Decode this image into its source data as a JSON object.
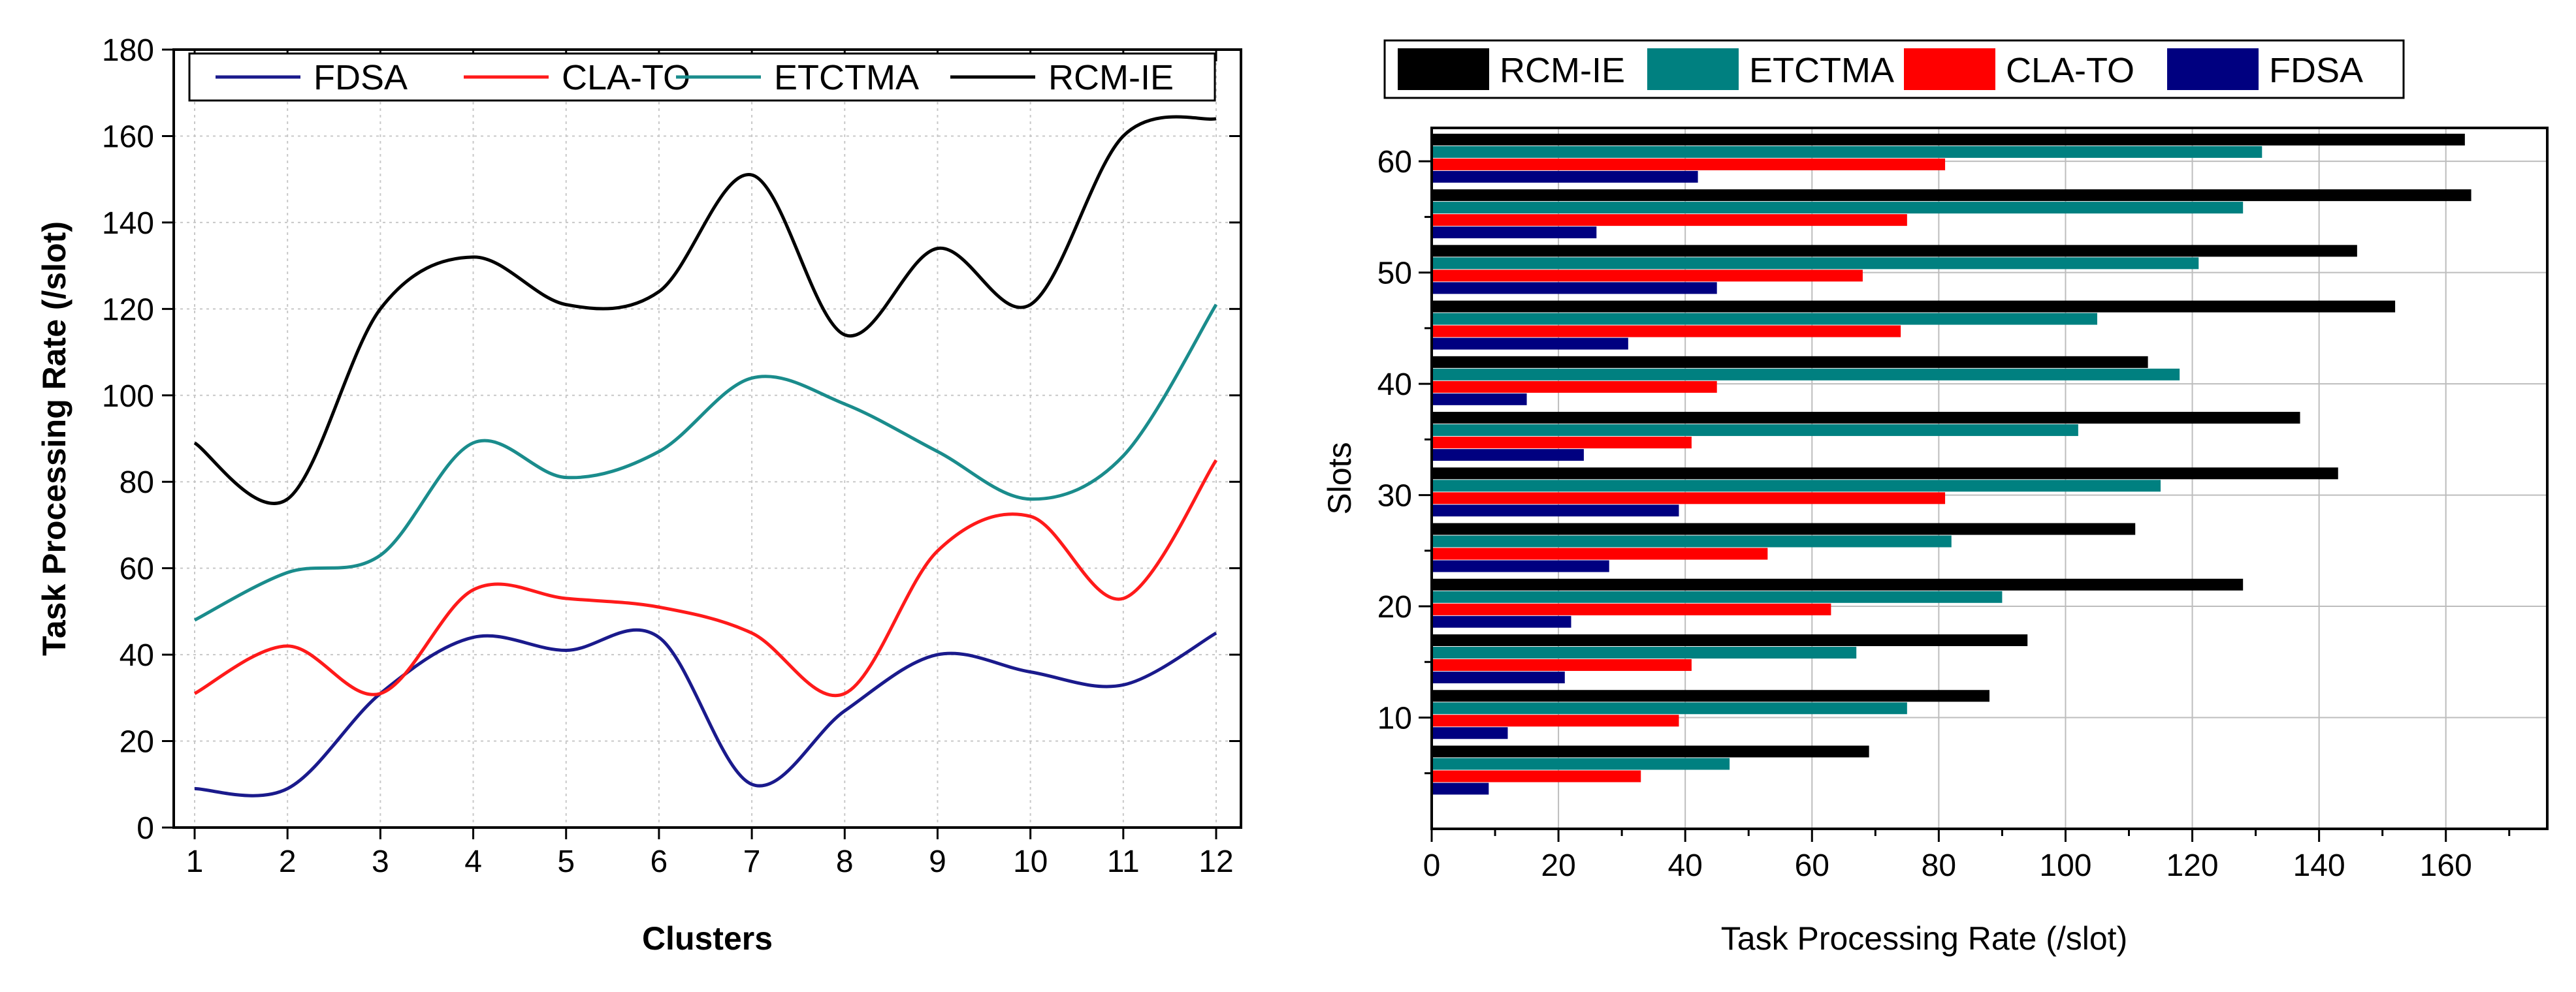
{
  "chart_data": [
    {
      "type": "line",
      "title": "",
      "xlabel": "Clusters",
      "ylabel": "Task Processing Rate (/slot)",
      "xlim": [
        1,
        12
      ],
      "ylim": [
        0,
        180
      ],
      "grid": true,
      "legend_position": "top",
      "x": [
        1,
        2,
        3,
        4,
        5,
        6,
        7,
        8,
        9,
        10,
        11,
        12
      ],
      "x_ticks": [
        "1",
        "2",
        "3",
        "4",
        "5",
        "6",
        "7",
        "8",
        "9",
        "10",
        "11",
        "12"
      ],
      "y_ticks": [
        "0",
        "20",
        "40",
        "60",
        "80",
        "100",
        "120",
        "140",
        "160",
        "180"
      ],
      "series": [
        {
          "name": "FDSA",
          "color": "#1a1a8c",
          "values": [
            9,
            9,
            31,
            44,
            41,
            44,
            10,
            27,
            40,
            36,
            33,
            45
          ]
        },
        {
          "name": "CLA-TO",
          "color": "#ff1a1a",
          "values": [
            31,
            42,
            31,
            55,
            53,
            51,
            45,
            31,
            64,
            72,
            53,
            85
          ]
        },
        {
          "name": "ETCTMA",
          "color": "#1a8c8c",
          "values": [
            48,
            59,
            63,
            89,
            81,
            87,
            104,
            98,
            87,
            76,
            86,
            121
          ]
        },
        {
          "name": "RCM-IE",
          "color": "#000000",
          "values": [
            89,
            76,
            120,
            132,
            121,
            124,
            151,
            114,
            134,
            121,
            160,
            164
          ]
        }
      ]
    },
    {
      "type": "bar",
      "orientation": "horizontal",
      "title": "",
      "xlabel": "Task Processing Rate (/slot)",
      "ylabel": "Slots",
      "xlim": [
        0,
        176
      ],
      "ylim": [
        0,
        63
      ],
      "grid": true,
      "legend_position": "top",
      "categories": [
        5,
        10,
        15,
        20,
        25,
        30,
        35,
        40,
        45,
        50,
        55,
        60
      ],
      "x_ticks": [
        "0",
        "20",
        "40",
        "60",
        "80",
        "100",
        "120",
        "140",
        "160"
      ],
      "y_ticks": [
        "10",
        "20",
        "30",
        "40",
        "50",
        "60"
      ],
      "legend_order": [
        "RCM-IE",
        "ETCTMA",
        "CLA-TO",
        "FDSA"
      ],
      "series": [
        {
          "name": "RCM-IE",
          "color": "#000000",
          "values": [
            69,
            88,
            94,
            128,
            111,
            143,
            137,
            113,
            152,
            146,
            164,
            163
          ]
        },
        {
          "name": "ETCTMA",
          "color": "#008080",
          "values": [
            47,
            75,
            67,
            90,
            82,
            115,
            102,
            118,
            105,
            121,
            128,
            131
          ]
        },
        {
          "name": "CLA-TO",
          "color": "#ff0000",
          "values": [
            33,
            39,
            41,
            63,
            53,
            81,
            41,
            45,
            74,
            68,
            75,
            81
          ]
        },
        {
          "name": "FDSA",
          "color": "#000080",
          "values": [
            9,
            12,
            21,
            22,
            28,
            39,
            24,
            15,
            31,
            45,
            26,
            42
          ]
        }
      ]
    }
  ]
}
